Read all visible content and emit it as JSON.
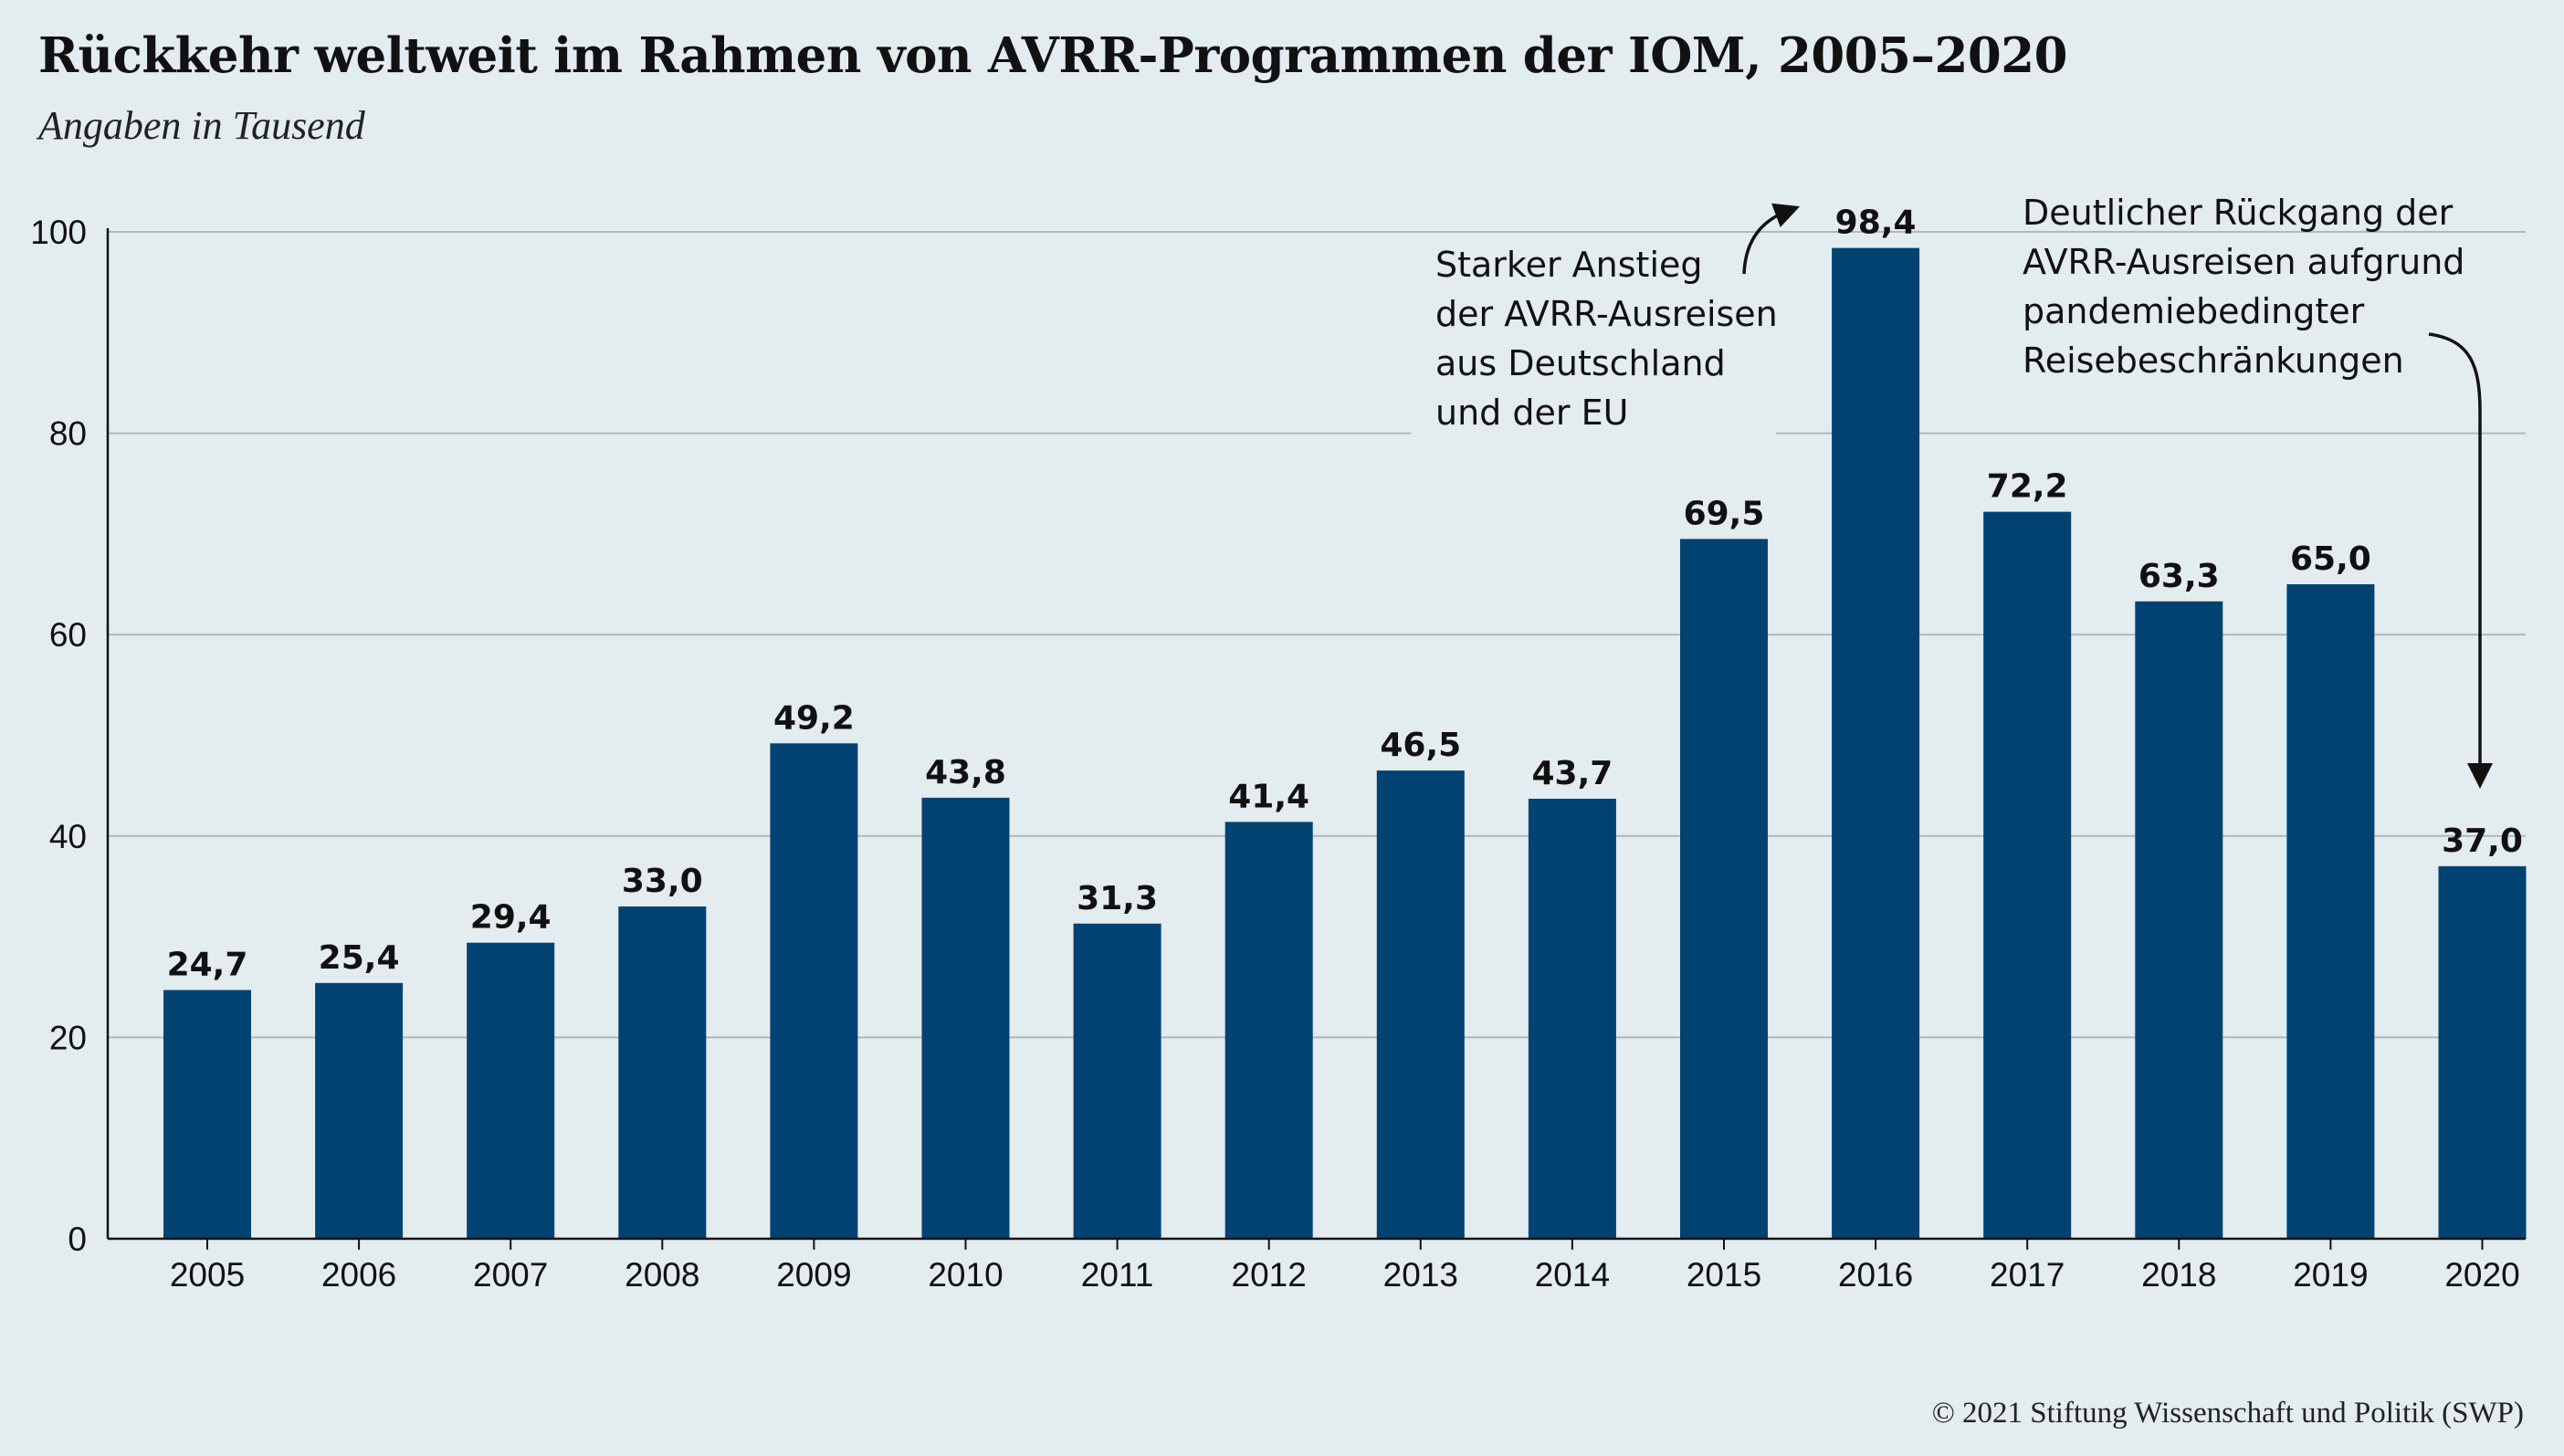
{
  "header": {
    "title": "Rückkehr weltweit im Rahmen von AVRR-Programmen der IOM, 2005–2020",
    "subtitle": "Angaben in Tausend"
  },
  "footer": {
    "copyright": "© 2021 Stiftung Wissenschaft und Politik (SWP)"
  },
  "chart_data": {
    "type": "bar",
    "title": "Rückkehr weltweit im Rahmen von AVRR-Programmen der IOM, 2005–2020",
    "subtitle": "Angaben in Tausend",
    "xlabel": "",
    "ylabel": "",
    "categories": [
      "2005",
      "2006",
      "2007",
      "2008",
      "2009",
      "2010",
      "2011",
      "2012",
      "2013",
      "2014",
      "2015",
      "2016",
      "2017",
      "2018",
      "2019",
      "2020"
    ],
    "values": [
      24.7,
      25.4,
      29.4,
      33.0,
      49.2,
      43.8,
      31.3,
      41.4,
      46.5,
      43.7,
      69.5,
      98.4,
      72.2,
      63.3,
      65.0,
      37.0
    ],
    "value_labels": [
      "24,7",
      "25,4",
      "29,4",
      "33,0",
      "49,2",
      "43,8",
      "31,3",
      "41,4",
      "46,5",
      "43,7",
      "69,5",
      "98,4",
      "72,2",
      "63,3",
      "65,0",
      "37,0"
    ],
    "ylim": [
      0,
      100
    ],
    "yticks": [
      0,
      20,
      40,
      60,
      80,
      100
    ],
    "grid": true,
    "bar_color": "#004372",
    "annotations": [
      {
        "target": "2016",
        "lines": [
          "Starker Anstieg",
          "der AVRR-Ausreisen",
          "aus Deutschland",
          "und der EU"
        ]
      },
      {
        "target": "2020",
        "lines": [
          "Deutlicher Rückgang der",
          "AVRR-Ausreisen aufgrund",
          "pandemiebedingter",
          "Reisebeschränkungen"
        ]
      }
    ]
  }
}
